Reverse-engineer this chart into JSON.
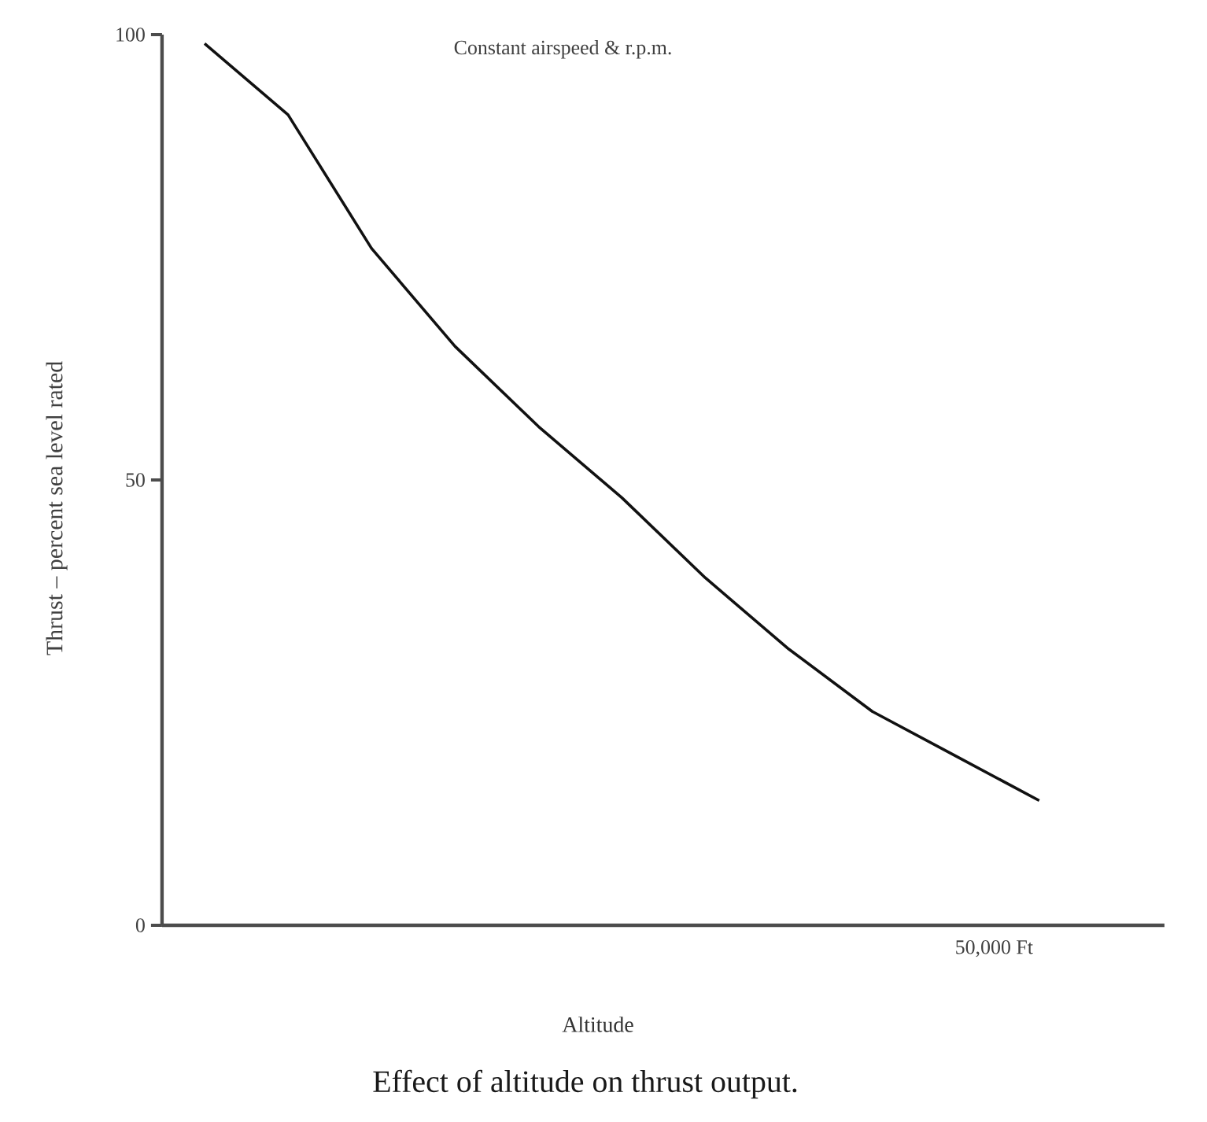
{
  "chart_data": {
    "type": "line",
    "title": "Effect of altitude on thrust output.",
    "xlabel": "Altitude",
    "ylabel": "Thrust – percent sea level rated",
    "annotations": [
      "Constant airspeed & r.p.m.",
      "50,000 Ft"
    ],
    "categories": [
      null,
      null,
      null,
      null,
      null,
      null,
      null,
      null,
      null,
      null,
      null
    ],
    "series": [
      {
        "color": "#111111",
        "values": [
          99,
          91,
          76,
          65,
          56,
          48,
          39,
          31,
          24,
          19,
          14
        ]
      }
    ],
    "ylim": [
      0,
      100
    ],
    "yticks": [
      0,
      50,
      100
    ]
  }
}
